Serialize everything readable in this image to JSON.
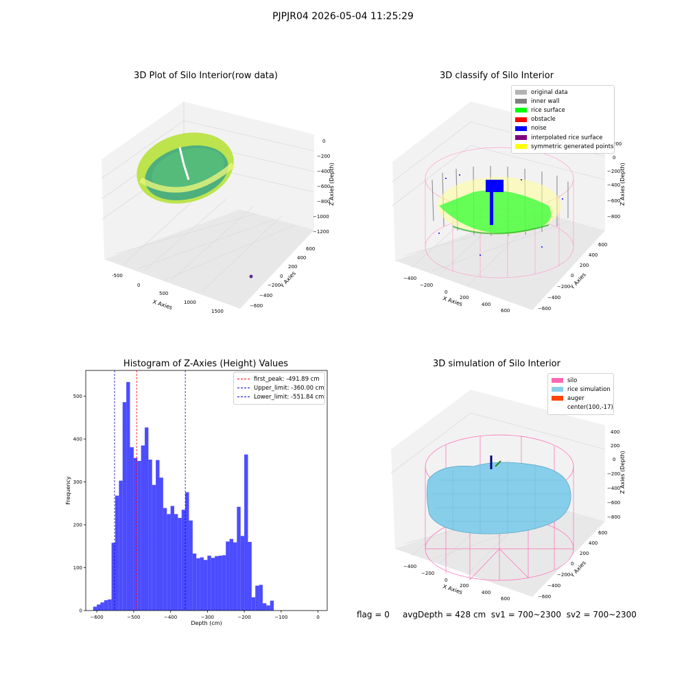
{
  "figure": {
    "suptitle": "PJPJR04 2026-05-04 11:25:29",
    "status": {
      "flag": "flag = 0",
      "avg_depth": "avgDepth = 428 cm",
      "sv1": "sv1 = 700~2300",
      "sv2": "sv2 = 700~2300"
    }
  },
  "panels": {
    "raw": {
      "title": "3D Plot of Silo Interior(row data)",
      "xlabel": "X Axies",
      "ylabel": "Y Axies",
      "zlabel": "Z Axies (Depth)",
      "xticks": [
        "-500",
        "0",
        "500",
        "1000",
        "1500"
      ],
      "yticks": [
        "600",
        "400",
        "200",
        "0",
        "−200",
        "−400",
        "−600"
      ],
      "zticks": [
        "0",
        "−200",
        "−400",
        "−600",
        "−800",
        "−1000",
        "−1200"
      ]
    },
    "classify": {
      "title": "3D classify of Silo Interior",
      "xlabel": "X Axies",
      "ylabel": "Y Axies",
      "zlabel": "Z Axies (Depth)",
      "xticks": [
        "−400",
        "−200",
        "0",
        "200",
        "400",
        "600"
      ],
      "yticks": [
        "600",
        "400",
        "200",
        "0",
        "−200",
        "−400",
        "−600"
      ],
      "zticks": [
        "200",
        "0",
        "−200",
        "−400",
        "−600",
        "−800"
      ],
      "legend": [
        {
          "label": "original data",
          "color": "#b3b3b3"
        },
        {
          "label": "inner wall",
          "color": "#808080"
        },
        {
          "label": "rice surface",
          "color": "#00ff00"
        },
        {
          "label": "obstacle",
          "color": "#ff0000"
        },
        {
          "label": "noise",
          "color": "#0000ff"
        },
        {
          "label": "interpolated rice surface",
          "color": "#800080"
        },
        {
          "label": "symmetric generated points",
          "color": "#ffff00"
        }
      ]
    },
    "simulation": {
      "title": "3D simulation of Silo Interior",
      "xlabel": "X Axies",
      "ylabel": "Y Axies",
      "zlabel": "Z Axies (Depth)",
      "xticks": [
        "−400",
        "−200",
        "0",
        "200",
        "400",
        "600"
      ],
      "yticks": [
        "600",
        "400",
        "200",
        "0",
        "−200",
        "−400",
        "−600"
      ],
      "zticks": [
        "400",
        "200",
        "0",
        "−200",
        "−400",
        "−600",
        "−800"
      ],
      "legend": [
        {
          "label": "silo",
          "color": "#ff69b4"
        },
        {
          "label": "rice simulation",
          "color": "#87ceeb"
        },
        {
          "label": "auger",
          "color": "#ff4500"
        },
        {
          "label": "center(100,-17)",
          "color": ""
        }
      ]
    }
  },
  "chart_data": {
    "type": "bar",
    "title": "Histogram of Z-Axies (Height) Values",
    "xlabel": "Depth (cm)",
    "ylabel": "Frequency",
    "bar_color": "#4c4cff",
    "bin_width": 10,
    "bin_edges_start": -610,
    "values": [
      9,
      14,
      19,
      24,
      26,
      158,
      268,
      303,
      486,
      533,
      381,
      356,
      349,
      385,
      427,
      352,
      293,
      351,
      310,
      239,
      225,
      244,
      225,
      216,
      235,
      276,
      210,
      133,
      122,
      124,
      118,
      128,
      123,
      127,
      128,
      129,
      161,
      167,
      159,
      242,
      174,
      364,
      160,
      31,
      58,
      60,
      17,
      12,
      23
    ],
    "xlim": [
      -630,
      25
    ],
    "ylim": [
      0,
      560
    ],
    "xticks": [
      -600,
      -500,
      -400,
      -300,
      -200,
      -100,
      0
    ],
    "yticks": [
      0,
      100,
      200,
      300,
      400,
      500
    ],
    "grid": false,
    "legend_position": "top-right",
    "vlines": [
      {
        "label": "first_peak: -491.89 cm",
        "x": -491.89,
        "color": "#ff0000"
      },
      {
        "label": "Upper_limit: -360.00 cm",
        "x": -360.0,
        "color": "#0000cc"
      },
      {
        "label": "Lower_limit: -551.84 cm",
        "x": -551.84,
        "color": "#0000cc"
      }
    ]
  }
}
